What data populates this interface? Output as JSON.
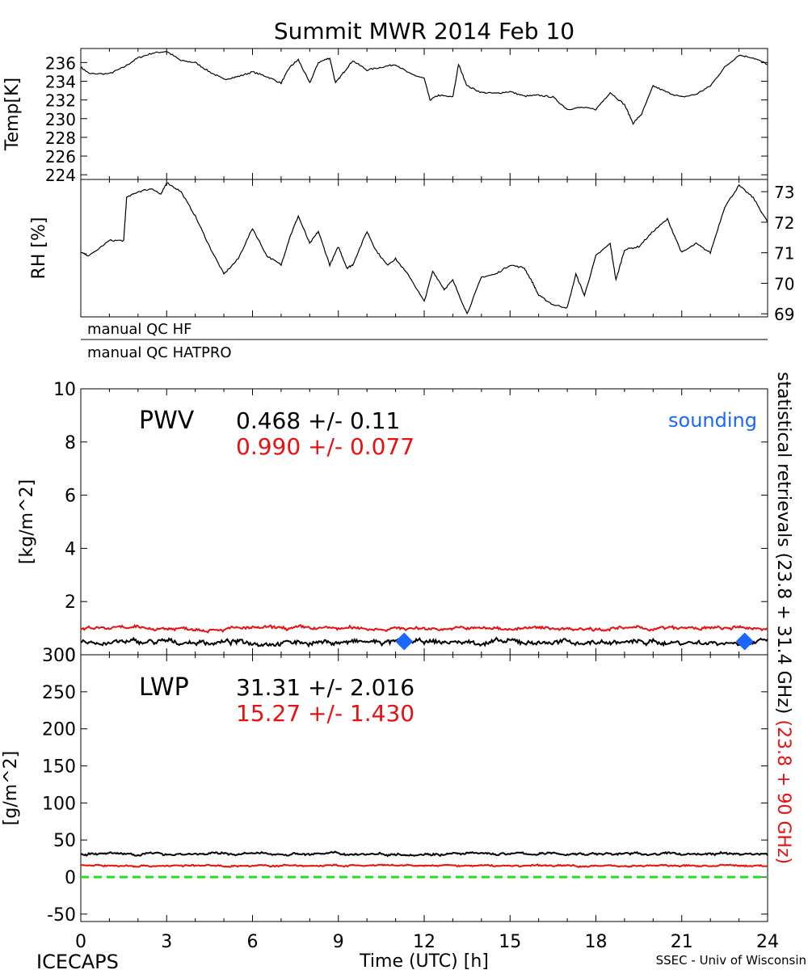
{
  "title": "Summit MWR 2014 Feb 10",
  "footer": {
    "left": "ICECAPS",
    "right": "SSEC - Univ of Wisconsin"
  },
  "colors": {
    "black": "#000000",
    "red": "#e81010",
    "blue": "#1a66ff",
    "green": "#22e01a"
  },
  "qc": {
    "hf_label": "manual QC HF",
    "hatpro_label": "manual QC HATPRO"
  },
  "right_label": {
    "black_part": "statistical retrievals (23.8 + 31.4 GHz)",
    "red_part": "(23.8 + 90 GHz)"
  },
  "chart_data": [
    {
      "id": "temp",
      "type": "line",
      "ylabel": "Temp[K]",
      "ylim": [
        223.5,
        237.5
      ],
      "yticks": [
        224,
        226,
        228,
        230,
        232,
        234,
        236
      ],
      "xlim": [
        0,
        24
      ],
      "series": [
        {
          "color": "black",
          "x": [
            0,
            0.3,
            1.0,
            1.5,
            2.0,
            2.5,
            3.0,
            3.5,
            4.0,
            4.5,
            5.0,
            5.5,
            6.0,
            6.5,
            7.0,
            7.3,
            7.6,
            8.0,
            8.3,
            8.7,
            8.9,
            9.2,
            9.5,
            10.0,
            10.5,
            11.0,
            11.5,
            12.0,
            12.2,
            12.5,
            13.0,
            13.2,
            13.5,
            14.0,
            14.5,
            15.0,
            15.5,
            16.0,
            16.5,
            17.0,
            17.5,
            18.0,
            18.5,
            19.0,
            19.3,
            19.6,
            20.0,
            20.5,
            21.0,
            21.5,
            22.0,
            22.5,
            23.0,
            23.5,
            24.0
          ],
          "y": [
            235.5,
            234.8,
            234.8,
            235.5,
            236.5,
            237.0,
            237.2,
            236.2,
            236.0,
            235.0,
            234.2,
            234.5,
            235.0,
            234.5,
            233.8,
            235.5,
            236.3,
            233.8,
            236.0,
            236.5,
            233.8,
            235.0,
            236.2,
            235.2,
            235.5,
            235.8,
            234.8,
            234.3,
            232.0,
            232.5,
            232.3,
            235.8,
            233.5,
            232.8,
            232.7,
            232.9,
            232.4,
            232.5,
            232.3,
            231.0,
            231.2,
            231.0,
            232.8,
            231.5,
            229.5,
            230.5,
            233.5,
            232.8,
            232.3,
            232.6,
            233.5,
            235.5,
            236.8,
            236.5,
            235.8
          ]
        }
      ]
    },
    {
      "id": "rh",
      "type": "line",
      "ylabel": "RH [%]",
      "ylim": [
        68.9,
        73.4
      ],
      "yticks": [
        69,
        70,
        71,
        72,
        73
      ],
      "xlim": [
        0,
        24
      ],
      "series": [
        {
          "color": "black",
          "x": [
            0,
            0.3,
            1.0,
            1.5,
            1.6,
            2.0,
            2.5,
            2.8,
            3.0,
            3.5,
            4.0,
            4.5,
            5.0,
            5.5,
            6.0,
            6.5,
            7.0,
            7.3,
            7.6,
            8.0,
            8.3,
            8.7,
            9.0,
            9.3,
            9.5,
            10.0,
            10.3,
            10.7,
            11.0,
            11.5,
            12.0,
            12.3,
            12.7,
            13.0,
            13.5,
            14.0,
            14.5,
            15.0,
            15.5,
            15.8,
            16.0,
            16.5,
            17.0,
            17.3,
            17.6,
            18.0,
            18.5,
            18.7,
            19.0,
            19.5,
            20.0,
            20.5,
            21.0,
            21.5,
            22.0,
            22.5,
            23.0,
            23.5,
            24.0
          ],
          "y": [
            71.0,
            70.9,
            71.4,
            71.4,
            72.8,
            73.0,
            73.1,
            72.9,
            73.3,
            73.0,
            72.2,
            71.2,
            70.3,
            70.8,
            71.8,
            70.9,
            70.6,
            71.5,
            72.2,
            71.3,
            71.7,
            70.6,
            71.2,
            70.5,
            70.6,
            71.7,
            71.1,
            70.6,
            70.8,
            70.2,
            69.4,
            70.4,
            69.8,
            70.1,
            69.0,
            70.2,
            70.3,
            70.6,
            70.5,
            70.0,
            69.6,
            69.3,
            69.2,
            70.3,
            69.6,
            70.9,
            71.3,
            70.1,
            71.1,
            71.2,
            71.7,
            72.1,
            71.0,
            71.3,
            71.0,
            72.5,
            73.2,
            72.8,
            72.0
          ]
        }
      ]
    },
    {
      "id": "pwv",
      "type": "line",
      "ylabel": "[kg/m^2]",
      "ylim": [
        0,
        10
      ],
      "yticks": [
        0,
        2,
        4,
        6,
        8,
        10
      ],
      "xlim": [
        0,
        24
      ],
      "label": "PWV",
      "stats": [
        {
          "color": "black",
          "text": "0.468 +/-   0.11"
        },
        {
          "color": "red",
          "text": "0.990 +/- 0.077"
        }
      ],
      "series": [
        {
          "color": "black",
          "mean": 0.468,
          "noise": 0.11
        },
        {
          "color": "red",
          "mean": 0.99,
          "noise": 0.077
        }
      ],
      "sounding_label": "sounding",
      "soundings": [
        {
          "x": 11.3,
          "y": 0.5
        },
        {
          "x": 23.2,
          "y": 0.5
        }
      ]
    },
    {
      "id": "lwp",
      "type": "line",
      "ylabel": "[g/m^2]",
      "xlabel": "Time (UTC) [h]",
      "ylim": [
        -60,
        300
      ],
      "yticks": [
        -50,
        0,
        50,
        100,
        150,
        200,
        250,
        300
      ],
      "xlim": [
        0,
        24
      ],
      "xticks": [
        0,
        3,
        6,
        9,
        12,
        15,
        18,
        21,
        24
      ],
      "label": "LWP",
      "stats": [
        {
          "color": "black",
          "text": "31.31 +/-   2.016"
        },
        {
          "color": "red",
          "text": "15.27 +/-   1.430"
        }
      ],
      "series": [
        {
          "color": "black",
          "mean": 31.31,
          "noise": 2.016
        },
        {
          "color": "red",
          "mean": 15.27,
          "noise": 1.43
        }
      ],
      "zero_line": 0
    }
  ]
}
